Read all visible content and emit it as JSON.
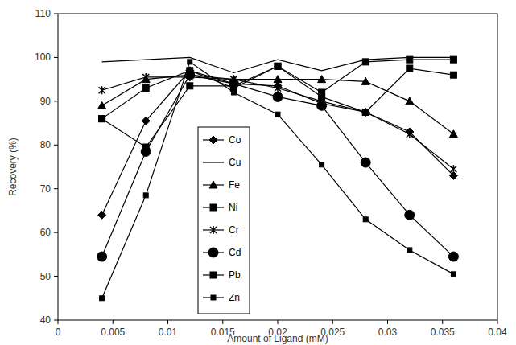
{
  "chart_data": {
    "type": "line",
    "x_label": "Amount of Ligand (mM)",
    "y_label": "Recovery (%)",
    "x": [
      0.004,
      0.008,
      0.012,
      0.016,
      0.02,
      0.024,
      0.028,
      0.032,
      0.036
    ],
    "xlim": [
      0,
      0.04
    ],
    "xticks": [
      0,
      0.005,
      0.01,
      0.015,
      0.02,
      0.025,
      0.03,
      0.035,
      0.04
    ],
    "ylim": [
      40,
      110
    ],
    "yticks": [
      40,
      50,
      60,
      70,
      80,
      90,
      100,
      110
    ],
    "grid": false,
    "legend": "center",
    "series": [
      {
        "name": "Co",
        "color": "#000000",
        "marker": "diamond",
        "values": [
          64,
          85.5,
          97,
          94,
          93.5,
          89.5,
          87.5,
          83,
          73
        ]
      },
      {
        "name": "Cu",
        "color": "#000000",
        "marker": "none",
        "values": [
          99,
          99.5,
          100,
          96.5,
          99.5,
          97,
          99.5,
          100,
          100
        ]
      },
      {
        "name": "Fe",
        "color": "#000000",
        "marker": "triangle",
        "values": [
          89,
          95,
          96,
          95,
          95,
          95,
          94.5,
          90,
          82.5
        ]
      },
      {
        "name": "Ni",
        "color": "#000000",
        "marker": "square",
        "values": [
          86,
          93,
          97,
          93,
          98,
          92,
          99,
          99.5,
          99.5
        ]
      },
      {
        "name": "Cr",
        "color": "#000000",
        "marker": "cross",
        "values": [
          92.5,
          95.5,
          95.5,
          95,
          93,
          90,
          87.5,
          82.5,
          74.5
        ]
      },
      {
        "name": "Cd",
        "color": "#000000",
        "marker": "circle",
        "values": [
          54.5,
          78.5,
          96,
          94,
          91,
          89,
          76,
          64,
          54.5
        ]
      },
      {
        "name": "Pb",
        "color": "#000000",
        "marker": "square",
        "values": [
          86,
          79.5,
          93.5,
          93.5,
          98,
          91,
          87.5,
          97.5,
          96
        ]
      },
      {
        "name": "Zn",
        "color": "#000000",
        "marker": "small-square",
        "values": [
          45,
          68.5,
          99,
          92,
          87,
          75.5,
          63,
          56,
          50.5
        ]
      }
    ]
  }
}
